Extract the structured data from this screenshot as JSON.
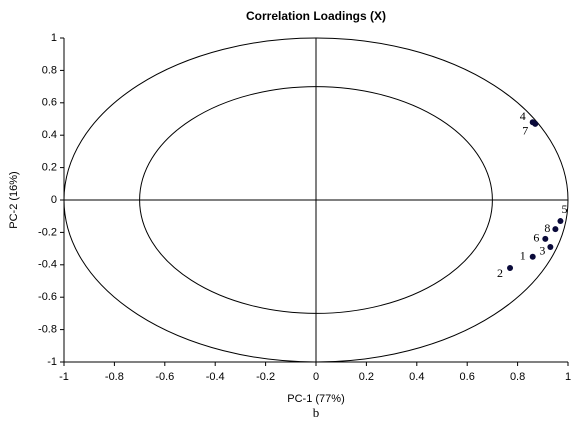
{
  "chart_data": {
    "type": "scatter",
    "title": "Correlation Loadings (X)",
    "x_label": "PC-1 (77%)",
    "y_label": "PC-2 (16%)",
    "caption": "b",
    "labels": [
      "1",
      "2",
      "3",
      "4",
      "5",
      "6",
      "7",
      "8"
    ],
    "x": [
      0.86,
      0.77,
      0.93,
      0.86,
      0.97,
      0.91,
      0.87,
      0.95
    ],
    "values": [
      -0.35,
      -0.42,
      -0.29,
      0.48,
      -0.13,
      -0.24,
      0.47,
      -0.18
    ],
    "color": "#0a0a3a",
    "circles": [
      1,
      0.7
    ],
    "xlim": [
      -1,
      1
    ],
    "ylim": [
      -1,
      1
    ],
    "xticks": [
      -1,
      -0.8,
      -0.6,
      -0.4,
      -0.2,
      0,
      0.2,
      0.4,
      0.6,
      0.8,
      1
    ],
    "yticks": [
      -1,
      -0.8,
      -0.6,
      -0.4,
      -0.2,
      0,
      0.2,
      0.4,
      0.6,
      0.8,
      1
    ]
  }
}
